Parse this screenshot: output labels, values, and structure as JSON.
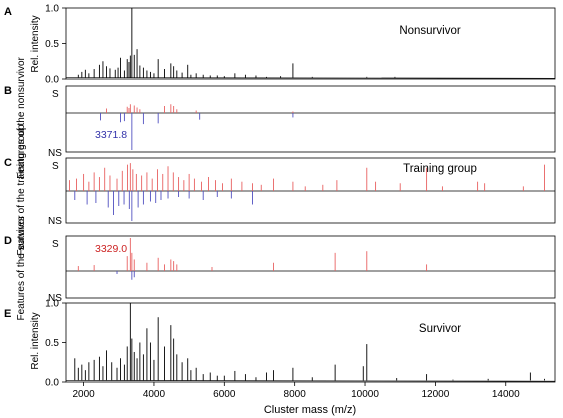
{
  "chart_data": [
    {
      "panel": "A",
      "type": "line",
      "title": "Nonsurvivor",
      "ylabel": "Rel. intensity",
      "xlim": [
        1500,
        15400
      ],
      "ylim": [
        0,
        1.0
      ],
      "yticks": [
        0.0,
        0.5,
        1.0
      ],
      "ytick_labels": [
        "0.0",
        "0.5",
        "1.0"
      ],
      "x": [
        1850,
        1950,
        2050,
        2150,
        2300,
        2450,
        2550,
        2650,
        2750,
        2900,
        2980,
        3050,
        3160,
        3240,
        3290,
        3329,
        3372,
        3440,
        3520,
        3600,
        3700,
        3800,
        3900,
        4000,
        4120,
        4300,
        4480,
        4560,
        4650,
        4800,
        4960,
        5050,
        5200,
        5400,
        5600,
        5800,
        6000,
        6300,
        6600,
        6900,
        7200,
        7600,
        7950,
        8500,
        9000,
        10050,
        10850,
        12000
      ],
      "y": [
        0.06,
        0.1,
        0.13,
        0.08,
        0.14,
        0.2,
        0.25,
        0.18,
        0.15,
        0.13,
        0.16,
        0.3,
        0.12,
        0.28,
        0.24,
        0.33,
        1.0,
        0.34,
        0.42,
        0.19,
        0.16,
        0.12,
        0.1,
        0.08,
        0.28,
        0.14,
        0.22,
        0.18,
        0.12,
        0.09,
        0.2,
        0.06,
        0.08,
        0.06,
        0.05,
        0.05,
        0.04,
        0.08,
        0.06,
        0.05,
        0.03,
        0.04,
        0.22,
        0.03,
        0.02,
        0.03,
        0.03,
        0.02
      ]
    },
    {
      "panel": "B",
      "type": "bar",
      "ylabel": "Features of the nonsurvivor",
      "ytick_labels": [
        "S",
        "NS"
      ],
      "xlim": [
        1500,
        15400
      ],
      "annotation": "3371.8",
      "series": [
        {
          "name": "S",
          "color": "#e86060",
          "x": [
            2650,
            3240,
            3290,
            3329,
            3440,
            3520,
            3600,
            4300,
            4480,
            4560,
            4650,
            5200,
            7950
          ],
          "values": [
            0.18,
            0.25,
            0.2,
            0.35,
            0.3,
            0.22,
            0.15,
            0.28,
            0.35,
            0.28,
            0.15,
            0.1,
            0.06
          ]
        },
        {
          "name": "NS",
          "color": "#5050c0",
          "x": [
            2480,
            3050,
            3160,
            3372,
            3700,
            4120,
            5300,
            7950
          ],
          "values": [
            0.2,
            0.25,
            0.22,
            1.0,
            0.3,
            0.28,
            0.18,
            0.12
          ]
        }
      ]
    },
    {
      "panel": "C",
      "type": "bar",
      "title": "Training group",
      "ylabel": "Features of the training group",
      "ytick_labels": [
        "S",
        "NS"
      ],
      "xlim": [
        1500,
        15400
      ],
      "series": [
        {
          "name": "S",
          "color": "#e86060",
          "x": [
            1600,
            1800,
            2000,
            2150,
            2300,
            2450,
            2600,
            2750,
            2950,
            3100,
            3250,
            3329,
            3400,
            3500,
            3650,
            3800,
            3950,
            4100,
            4250,
            4400,
            4550,
            4700,
            4850,
            5000,
            5150,
            5350,
            5550,
            5750,
            5950,
            6200,
            6500,
            6800,
            7050,
            7400,
            7950,
            8300,
            8800,
            9200,
            10050,
            10300,
            11000,
            11750,
            12200,
            13200,
            13400,
            14500,
            15100
          ],
          "values": [
            0.35,
            0.4,
            0.55,
            0.3,
            0.6,
            0.45,
            0.75,
            0.5,
            0.4,
            0.65,
            0.85,
            0.9,
            0.7,
            0.55,
            0.5,
            0.6,
            0.4,
            0.7,
            0.55,
            0.8,
            0.6,
            0.45,
            0.35,
            0.55,
            0.4,
            0.3,
            0.45,
            0.35,
            0.25,
            0.4,
            0.3,
            0.25,
            0.2,
            0.4,
            0.3,
            0.15,
            0.2,
            0.35,
            0.75,
            0.3,
            0.25,
            0.75,
            0.15,
            0.3,
            0.25,
            0.15,
            0.85
          ]
        },
        {
          "name": "NS",
          "color": "#5050c0",
          "x": [
            1750,
            2100,
            2350,
            2700,
            2850,
            3000,
            3150,
            3300,
            3372,
            3550,
            3700,
            3900,
            4050,
            4200,
            4400,
            4700,
            5000,
            5400,
            5800,
            6200,
            6800
          ],
          "values": [
            0.3,
            0.45,
            0.4,
            0.55,
            0.8,
            0.5,
            0.45,
            0.6,
            1.0,
            0.55,
            0.45,
            0.35,
            0.4,
            0.3,
            0.25,
            0.2,
            0.25,
            0.3,
            0.2,
            0.25,
            0.45
          ]
        }
      ]
    },
    {
      "panel": "D",
      "type": "bar",
      "ylabel": "Features of the survivor",
      "ytick_labels": [
        "S",
        "NS"
      ],
      "xlim": [
        1500,
        15400
      ],
      "annotation": "3329.0",
      "series": [
        {
          "name": "S",
          "color": "#e86060",
          "x": [
            1850,
            2300,
            3240,
            3329,
            3372,
            3440,
            3800,
            4120,
            4300,
            4480,
            4560,
            4650,
            5650,
            7400,
            9150,
            10050,
            11750
          ],
          "values": [
            0.15,
            0.18,
            0.45,
            1.0,
            0.55,
            0.35,
            0.25,
            0.4,
            0.2,
            0.35,
            0.3,
            0.2,
            0.12,
            0.25,
            0.55,
            0.6,
            0.2
          ]
        },
        {
          "name": "NS",
          "color": "#5050c0",
          "x": [
            2950,
            3372,
            3440
          ],
          "values": [
            0.12,
            0.35,
            0.25
          ]
        }
      ]
    },
    {
      "panel": "E",
      "type": "line",
      "title": "Survivor",
      "ylabel": "Rel. intensity",
      "xlabel": "Cluster mass  (m/z)",
      "xlim": [
        1500,
        15400
      ],
      "ylim": [
        0,
        1.0
      ],
      "xticks": [
        2000,
        4000,
        6000,
        8000,
        10000,
        12000,
        14000
      ],
      "xtick_labels": [
        "2000",
        "4000",
        "6000",
        "8000",
        "10000",
        "12000",
        "14000"
      ],
      "yticks": [
        0.0,
        0.5,
        1.0
      ],
      "ytick_labels": [
        "0.0",
        "0.5",
        "1.0"
      ],
      "x": [
        1750,
        1850,
        1950,
        2050,
        2150,
        2300,
        2450,
        2550,
        2650,
        2800,
        2950,
        3050,
        3160,
        3240,
        3329,
        3372,
        3440,
        3520,
        3600,
        3700,
        3800,
        3900,
        4000,
        4120,
        4300,
        4480,
        4560,
        4650,
        4800,
        4960,
        5050,
        5200,
        5400,
        5600,
        5800,
        6000,
        6300,
        6600,
        6900,
        7200,
        7400,
        7950,
        8500,
        9150,
        9950,
        10050,
        10900,
        11750,
        12500,
        13500,
        14700,
        15100
      ],
      "y": [
        0.3,
        0.18,
        0.22,
        0.15,
        0.25,
        0.28,
        0.32,
        0.2,
        0.4,
        0.25,
        0.18,
        0.3,
        0.22,
        0.45,
        1.0,
        0.55,
        0.38,
        0.3,
        0.5,
        0.35,
        0.68,
        0.5,
        0.28,
        0.82,
        0.45,
        0.72,
        0.55,
        0.35,
        0.25,
        0.3,
        0.15,
        0.18,
        0.1,
        0.12,
        0.08,
        0.08,
        0.14,
        0.1,
        0.06,
        0.12,
        0.15,
        0.18,
        0.06,
        0.22,
        0.2,
        0.48,
        0.05,
        0.1,
        0.03,
        0.04,
        0.12,
        0.04
      ]
    }
  ]
}
